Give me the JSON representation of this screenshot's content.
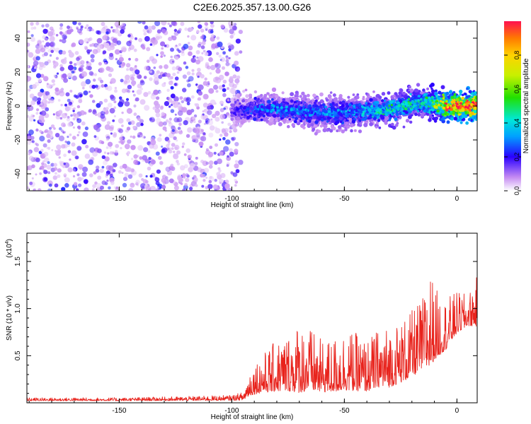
{
  "title": "C2E6.2025.357.13.00.G26",
  "chart_data": [
    {
      "type": "heatmap",
      "xlabel": "Height of straight line (km)",
      "ylabel": "Frequency (Hz)",
      "xlim": [
        -191,
        9
      ],
      "ylim": [
        -50,
        50
      ],
      "xticks": [
        -150,
        -100,
        -50,
        0
      ],
      "yticks": [
        -40,
        -20,
        0,
        20,
        40
      ],
      "colorbar": {
        "label": "Normalized spectral amplitude",
        "range": [
          0,
          1
        ],
        "ticks": [
          "0.0",
          "0.2",
          "0.4",
          "0.6",
          "0.8"
        ]
      },
      "noise_region": {
        "x": [
          -191,
          -96
        ],
        "y": [
          -50,
          50
        ],
        "typical_amplitude": 0.05
      },
      "signal_ridge": {
        "x": [
          -100,
          -95,
          -90,
          -80,
          -70,
          -60,
          -50,
          -40,
          -30,
          -25,
          -20,
          -15,
          -10,
          -5,
          0,
          5,
          9
        ],
        "center_freq": [
          -3,
          -3,
          -2,
          -2,
          -3,
          -4,
          -4,
          -3,
          -2,
          0,
          1,
          3,
          1,
          0,
          0,
          0,
          0
        ],
        "amplitude": [
          0.15,
          0.2,
          0.25,
          0.3,
          0.3,
          0.3,
          0.3,
          0.35,
          0.45,
          0.4,
          0.45,
          0.4,
          0.55,
          0.8,
          0.95,
          0.95,
          0.9
        ]
      }
    },
    {
      "type": "line",
      "xlabel": "Height of straight line (km)",
      "ylabel": "SNR (10 * v/v)",
      "scale_label": "(x10",
      "scale_exp": "4",
      "scale_close": ")",
      "xlim": [
        -191,
        9
      ],
      "ylim": [
        0,
        18000
      ],
      "xticks": [
        -150,
        -100,
        -50,
        0
      ],
      "yticks": [
        5000,
        10000,
        15000
      ],
      "ytick_labels": [
        "0.5",
        "1.0",
        "1.5"
      ],
      "series": [
        {
          "name": "SNR",
          "color": "#e8231c",
          "x": [
            -191,
            -170,
            -150,
            -120,
            -100,
            -95,
            -92,
            -88,
            -85,
            -80,
            -75,
            -70,
            -65,
            -60,
            -55,
            -50,
            -45,
            -40,
            -35,
            -30,
            -25,
            -20,
            -15,
            -12,
            -10,
            -5,
            0,
            5,
            9
          ],
          "mean": [
            300,
            300,
            300,
            350,
            400,
            500,
            1500,
            2000,
            2200,
            2600,
            2800,
            3000,
            3000,
            2500,
            2600,
            3000,
            2800,
            2600,
            3200,
            3300,
            3800,
            4500,
            5600,
            6500,
            6500,
            7000,
            8500,
            9000,
            9500
          ],
          "spread": [
            150,
            150,
            150,
            200,
            250,
            400,
            1300,
            1800,
            2000,
            2500,
            2800,
            3500,
            3000,
            2500,
            2600,
            3000,
            2800,
            2500,
            2800,
            3000,
            3000,
            3200,
            3500,
            5000,
            3500,
            2500,
            2000,
            1500,
            2500
          ]
        }
      ]
    }
  ]
}
